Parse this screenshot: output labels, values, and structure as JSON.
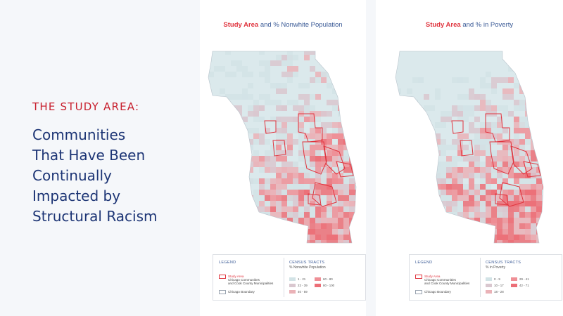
{
  "left": {
    "kicker": "THE STUDY AREA:",
    "headline": [
      "Communities",
      "That Have Been",
      "Continually",
      "Impacted by",
      "Structural Racism"
    ]
  },
  "maps": [
    {
      "title_red": "Study Area",
      "title_rest": "and % Nonwhite Population",
      "legend": {
        "heading": "LEGEND",
        "study_area": "Study Area",
        "study_area_desc_1": "Chicago Communities",
        "study_area_desc_2": "and Cook County Municipalities",
        "boundary": "Chicago Boundary",
        "tracts_heading": "CENSUS TRACTS",
        "tracts_sub": "% Nonwhite Population",
        "classes": [
          "1 - 21",
          "22 - 39",
          "40 - 59",
          "60 - 80",
          "80 - 100"
        ]
      }
    },
    {
      "title_red": "Study Area",
      "title_rest": "and % in Poverty",
      "legend": {
        "heading": "LEGEND",
        "study_area": "Study Area",
        "study_area_desc_1": "Chicago Communities",
        "study_area_desc_2": "and Cook County Municipalities",
        "boundary": "Chicago Boundary",
        "tracts_heading": "CENSUS TRACTS",
        "tracts_sub": "% in Poverty",
        "classes": [
          "0 - 9",
          "10 - 17",
          "18 - 28",
          "29 - 41",
          "42 - 71"
        ]
      }
    }
  ],
  "colors": {
    "base": "#dbe9ec",
    "class_1": "#d2e3e6",
    "class_2": "#d9c7cf",
    "class_3": "#eab2b7",
    "class_4": "#ef8f96",
    "class_5": "#ec6e77",
    "study_outline": "#e0343e",
    "kicker": "#c8202e",
    "headline": "#1d3575"
  }
}
